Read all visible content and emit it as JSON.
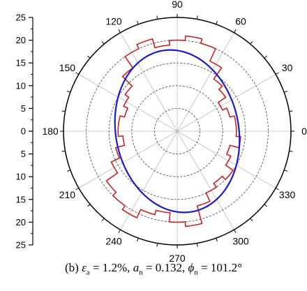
{
  "chart_data": {
    "type": "polar",
    "radial_axis": {
      "ticks": [
        25,
        20,
        15,
        10,
        5,
        0,
        5,
        10,
        15,
        20,
        25
      ],
      "range": [
        0,
        25
      ]
    },
    "angle_labels": [
      "0",
      "30",
      "60",
      "90",
      "120",
      "150",
      "180",
      "210",
      "240",
      "270",
      "300",
      "330"
    ],
    "grid": true,
    "series": [
      {
        "style": "histogram",
        "color": "#cc2222",
        "bin_width_deg": 10,
        "angles_deg": [
          0,
          10,
          20,
          30,
          40,
          50,
          60,
          70,
          80,
          90,
          100,
          110,
          120,
          130,
          140,
          150,
          160,
          170,
          180,
          190,
          200,
          210,
          220,
          230,
          240,
          250,
          260,
          270,
          280,
          290,
          300,
          310,
          320,
          330,
          340,
          350
        ],
        "values": [
          13,
          13,
          12,
          11,
          13,
          14,
          17,
          20,
          21,
          20,
          19,
          21,
          20,
          17,
          14,
          13,
          12,
          13,
          13,
          12,
          14,
          16,
          19,
          20,
          21,
          19,
          18,
          20,
          21,
          17,
          15,
          14,
          15,
          13,
          12,
          14
        ]
      },
      {
        "style": "ellipse_fit",
        "color": "#1a1ad4",
        "major_axis": 18,
        "minor_axis": 13.5,
        "major_axis_angle_deg": 101.2
      }
    ]
  },
  "caption": {
    "prefix": "(b) ",
    "eps": "ε",
    "eps_sub": "a",
    "eps_val": " = 1.2%, ",
    "an": "a",
    "an_sub": "n",
    "an_val": " = 0.132, ",
    "phi": "ϕ",
    "phi_sub": "n",
    "phi_val": " = 101.2°"
  }
}
